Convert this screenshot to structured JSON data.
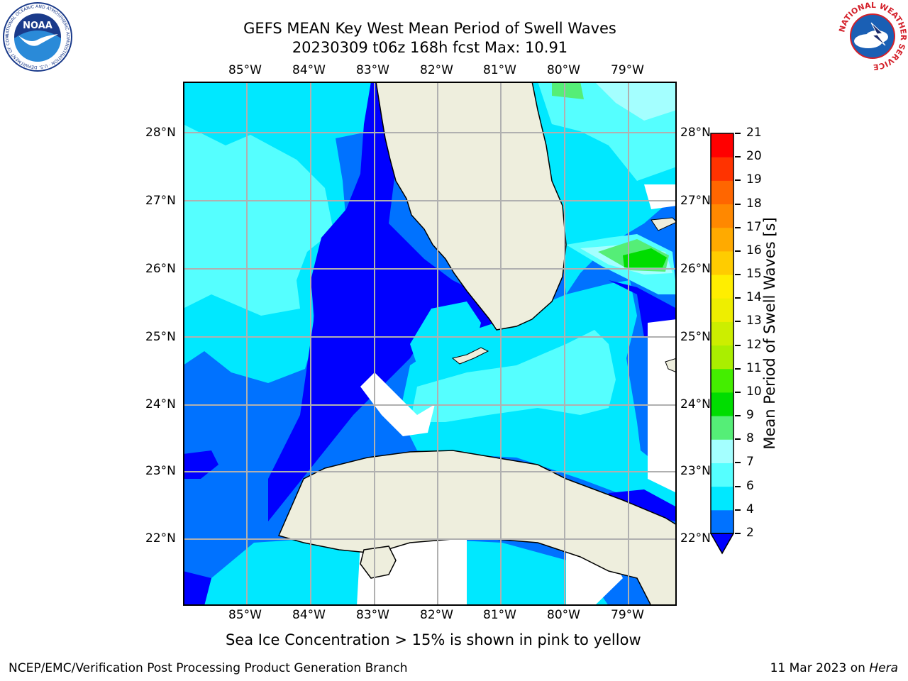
{
  "title": {
    "line1": "GEFS MEAN Key West Mean Period of Swell Waves",
    "line2": "20230309 t06z 168h fcst   Max: 10.91"
  },
  "axes": {
    "lon_labels": [
      "85°W",
      "84°W",
      "83°W",
      "82°W",
      "81°W",
      "80°W",
      "79°W"
    ],
    "lat_labels": [
      "28°N",
      "27°N",
      "26°N",
      "25°N",
      "24°N",
      "23°N",
      "22°N"
    ]
  },
  "colorbar": {
    "label": "Mean Period of Swell Waves [s]",
    "ticks": [
      "2",
      "4",
      "6",
      "7",
      "8",
      "9",
      "10",
      "11",
      "12",
      "13",
      "14",
      "15",
      "16",
      "17",
      "18",
      "19",
      "20",
      "21"
    ],
    "colors": [
      "#0072ff",
      "#00e8ff",
      "#55ffff",
      "#a4ffff",
      "#55ee77",
      "#00dd00",
      "#44ee00",
      "#aaee00",
      "#ccee00",
      "#eeee00",
      "#ffee00",
      "#ffcc00",
      "#ffaa00",
      "#ff8800",
      "#ff6600",
      "#ff3300",
      "#ff0000"
    ],
    "under_color": "#0000ff"
  },
  "caption": "Sea Ice Concentration > 15% is shown in pink to yellow",
  "footer": {
    "left": "NCEP/EMC/Verification Post Processing Product Generation Branch",
    "right_prefix": "11 Mar 2023 on ",
    "right_host": "Hera"
  },
  "logos": {
    "noaa_text": "NOAA",
    "noaa_ring": "NATIONAL OCEANIC AND ATMOSPHERIC ADMINISTRATION · U.S. DEPARTMENT OF COMMERCE",
    "nws_ring": "NATIONAL WEATHER SERVICE"
  },
  "colors": {
    "land": "#eeeedd",
    "deep": "#0000ff",
    "blue": "#0072ff",
    "cyan": "#00e8ff",
    "aqua": "#55ffff",
    "pale": "#a4ffff",
    "lightgreen": "#55ee77",
    "green": "#00dd00",
    "grid": "#b0b0b0"
  }
}
